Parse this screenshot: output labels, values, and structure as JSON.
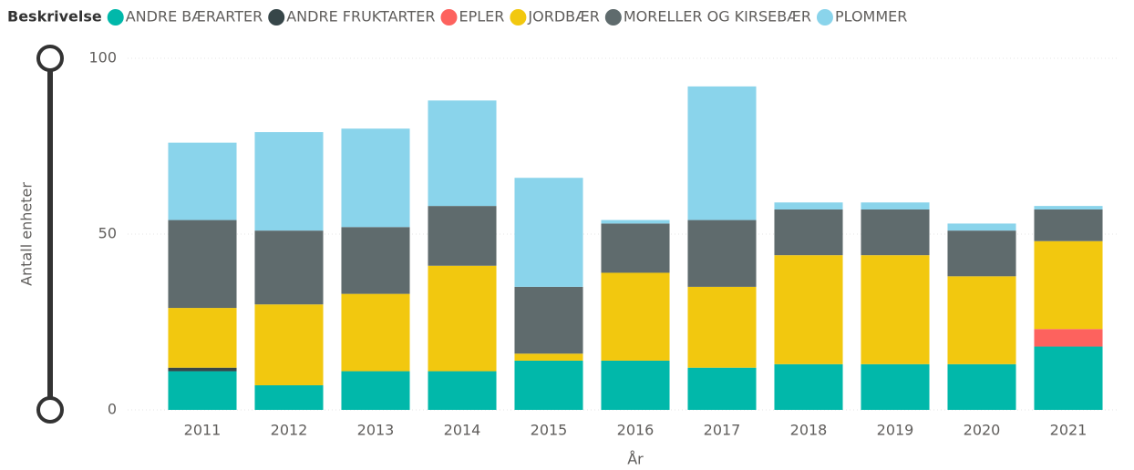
{
  "chart_data": {
    "type": "stacked_bar",
    "legend_title": "Beskrivelse",
    "x_label": "År",
    "y_label": "Antall enheter",
    "categories": [
      "2011",
      "2012",
      "2013",
      "2014",
      "2015",
      "2016",
      "2017",
      "2018",
      "2019",
      "2020",
      "2021"
    ],
    "series": [
      {
        "name": "ANDRE BÆRARTER",
        "color": "#01b8aa",
        "values": [
          11,
          7,
          11,
          11,
          14,
          14,
          12,
          13,
          13,
          13,
          18
        ]
      },
      {
        "name": "ANDRE FRUKTARTER",
        "color": "#374649",
        "values": [
          1,
          null,
          null,
          null,
          null,
          null,
          null,
          null,
          null,
          null,
          null
        ]
      },
      {
        "name": "EPLER",
        "color": "#fd625e",
        "values": [
          null,
          null,
          null,
          null,
          null,
          null,
          null,
          null,
          null,
          null,
          5
        ]
      },
      {
        "name": "JORDBÆR",
        "color": "#f2c80f",
        "values": [
          17,
          23,
          22,
          30,
          2,
          25,
          23,
          31,
          31,
          25,
          25
        ]
      },
      {
        "name": "MORELLER OG KIRSEBÆR",
        "color": "#5f6b6d",
        "values": [
          25,
          21,
          19,
          17,
          19,
          14,
          19,
          13,
          13,
          13,
          9
        ]
      },
      {
        "name": "PLOMMER",
        "color": "#8ad4eb",
        "values": [
          22,
          28,
          28,
          30,
          31,
          1,
          38,
          2,
          2,
          2,
          1
        ]
      }
    ],
    "ylim": [
      0,
      100
    ],
    "yticks": [
      0,
      50,
      100
    ],
    "grid": true,
    "legend": "top"
  }
}
